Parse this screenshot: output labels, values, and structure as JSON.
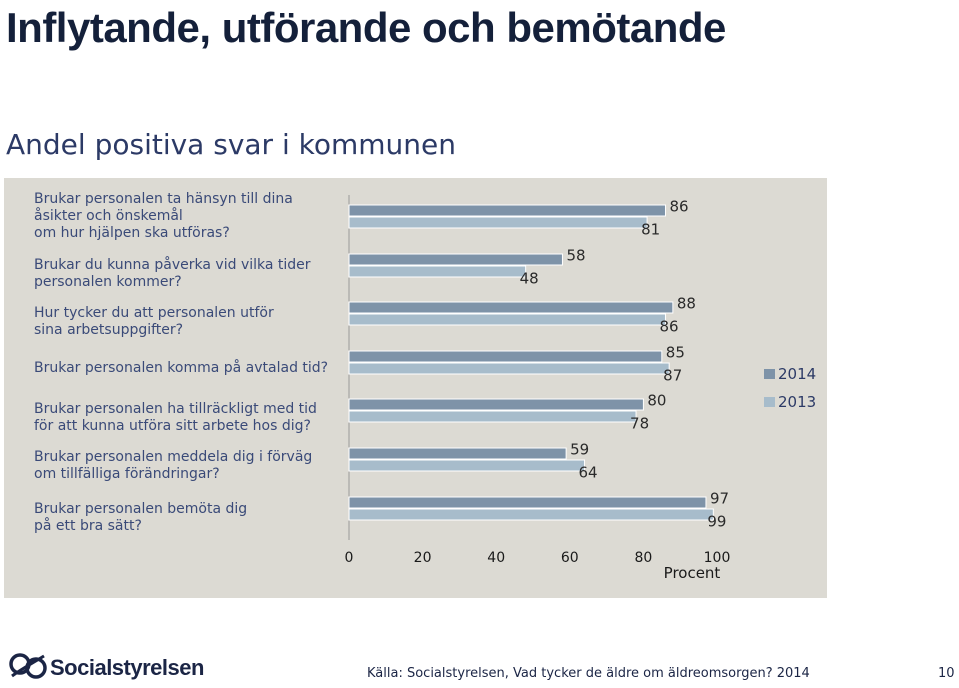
{
  "title": "Inflytande, utförande och bemötande",
  "subtitle": "Andel positiva svar i kommunen",
  "chart_data": {
    "type": "bar",
    "orientation": "horizontal",
    "categories": [
      "Brukar personalen ta hänsyn till dina\nåsikter och önskemål\nom hur hjälpen ska utföras?",
      "Brukar du kunna påverka vid vilka tider\npersonalen kommer?",
      "Hur tycker du att personalen utför\nsina arbetsuppgifter?",
      "Brukar personalen komma på avtalad tid?",
      "Brukar personalen ha tillräckligt med tid\nför att kunna utföra sitt arbete hos dig?",
      "Brukar personalen meddela dig i förväg\nom tillfälliga förändringar?",
      "Brukar personalen bemöta dig\npå ett bra sätt?"
    ],
    "series": [
      {
        "name": "2014",
        "values": [
          86,
          58,
          88,
          85,
          80,
          59,
          97
        ],
        "color": "#7e93a8"
      },
      {
        "name": "2013",
        "values": [
          81,
          48,
          86,
          87,
          78,
          64,
          99
        ],
        "color": "#a7bccb"
      }
    ],
    "xlim": [
      0,
      100
    ],
    "xticks": [
      "0",
      "20",
      "40",
      "60",
      "80",
      "100"
    ],
    "xlabel": "Procent",
    "legend": "right"
  },
  "footer": {
    "logo_text": "Socialstyrelsen",
    "source": "Källa: Socialstyrelsen, Vad tycker de äldre om äldreomsorgen? 2014",
    "page": "10"
  }
}
